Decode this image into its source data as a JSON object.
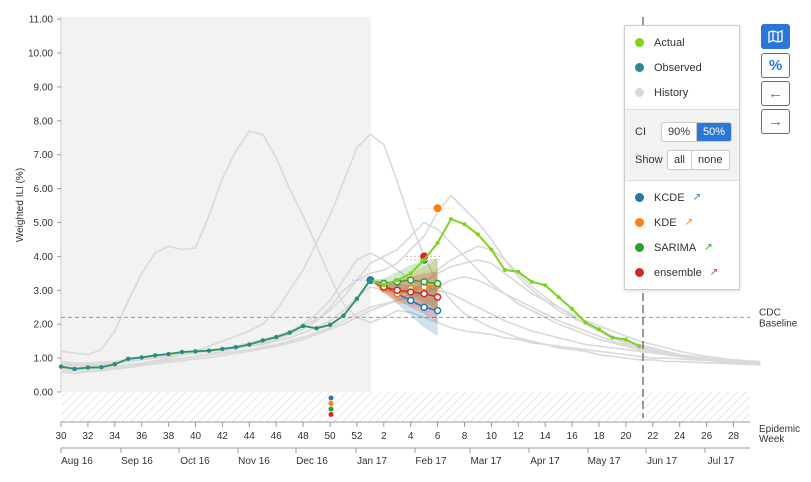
{
  "chart_data": {
    "type": "line",
    "ylabel": "Weighted ILI (%)",
    "xlabel": "Epidemic Week",
    "ylim": [
      0,
      11
    ],
    "yticks": [
      "0.00",
      "1.00",
      "2.00",
      "3.00",
      "4.00",
      "5.00",
      "6.00",
      "7.00",
      "8.00",
      "9.00",
      "10.00",
      "11.00"
    ],
    "week_ticks": [
      "30",
      "32",
      "34",
      "36",
      "38",
      "40",
      "42",
      "44",
      "46",
      "48",
      "50",
      "52",
      "2",
      "4",
      "6",
      "8",
      "10",
      "12",
      "14",
      "16",
      "18",
      "20",
      "22",
      "24",
      "26",
      "28"
    ],
    "month_ticks": [
      "Aug 16",
      "Sep 16",
      "Oct 16",
      "Nov 16",
      "Dec 16",
      "Jan 17",
      "Feb 17",
      "Mar 17",
      "Apr 17",
      "May 17",
      "Jun 17",
      "Jul 17"
    ],
    "baseline": {
      "value": 2.2,
      "label_line1": "CDC",
      "label_line2": "Baseline"
    },
    "observed": {
      "name": "Observed",
      "color": "#2a8a8a",
      "values": [
        0.75,
        0.68,
        0.72,
        0.73,
        0.82,
        0.98,
        1.02,
        1.08,
        1.12,
        1.18,
        1.2,
        1.22,
        1.27,
        1.32,
        1.4,
        1.52,
        1.62,
        1.75,
        1.95,
        1.88,
        1.98,
        2.25,
        2.75,
        3.3
      ]
    },
    "actual": {
      "name": "Actual",
      "color": "#7ed321",
      "values": [
        0.75,
        0.68,
        0.72,
        0.73,
        0.82,
        0.98,
        1.02,
        1.08,
        1.12,
        1.18,
        1.2,
        1.22,
        1.27,
        1.32,
        1.4,
        1.52,
        1.62,
        1.75,
        1.95,
        1.88,
        1.98,
        2.25,
        2.75,
        3.3,
        3.15,
        3.3,
        3.5,
        3.9,
        4.4,
        5.1,
        4.95,
        4.65,
        4.2,
        3.6,
        3.55,
        3.25,
        3.15,
        2.8,
        2.45,
        2.05,
        1.85,
        1.6,
        1.55,
        1.35
      ]
    },
    "history_color": "#d9d9d9",
    "history": [
      [
        1.2,
        1.15,
        1.1,
        1.25,
        1.8,
        2.7,
        3.5,
        4.1,
        4.3,
        4.2,
        4.25,
        5.2,
        6.3,
        7.1,
        7.7,
        7.6,
        6.9,
        6.0,
        5.2,
        4.3,
        3.4,
        2.6,
        2.2,
        2.05,
        2.2,
        2.4,
        2.35,
        2.2,
        2.05,
        1.9,
        1.8,
        1.75,
        1.7,
        1.6,
        1.55,
        1.45,
        1.4,
        1.35,
        1.3,
        1.25,
        1.2,
        1.15,
        1.1,
        1.05,
        1.0,
        1.0,
        0.98,
        0.95,
        0.93,
        0.9,
        0.88,
        0.87,
        0.85
      ],
      [
        0.6,
        0.55,
        0.6,
        0.62,
        0.7,
        0.8,
        0.85,
        0.92,
        1.0,
        1.1,
        1.2,
        1.35,
        1.5,
        1.65,
        1.8,
        2.0,
        2.4,
        3.0,
        3.6,
        4.4,
        5.2,
        6.2,
        7.2,
        7.6,
        7.3,
        6.2,
        5.0,
        4.0,
        3.2,
        2.7,
        2.3,
        2.1,
        1.9,
        1.75,
        1.6,
        1.5,
        1.4,
        1.3,
        1.25,
        1.2,
        1.1,
        1.05,
        1.0,
        0.95,
        0.95,
        0.9,
        0.9,
        0.88,
        0.86,
        0.85,
        0.83,
        0.82,
        0.8
      ],
      [
        0.8,
        0.78,
        0.77,
        0.78,
        0.82,
        0.9,
        0.95,
        1.0,
        1.05,
        1.1,
        1.15,
        1.2,
        1.25,
        1.3,
        1.4,
        1.5,
        1.6,
        1.8,
        2.0,
        2.3,
        2.7,
        3.3,
        3.9,
        4.1,
        3.9,
        3.6,
        3.3,
        3.1,
        3.0,
        2.9,
        2.7,
        2.5,
        2.3,
        2.1,
        1.95,
        1.8,
        1.7,
        1.6,
        1.5,
        1.4,
        1.35,
        1.3,
        1.25,
        1.2,
        1.15,
        1.1,
        1.05,
        1.0,
        0.98,
        0.95,
        0.92,
        0.9,
        0.88
      ],
      [
        0.7,
        0.68,
        0.68,
        0.7,
        0.72,
        0.78,
        0.82,
        0.88,
        0.92,
        0.98,
        1.05,
        1.12,
        1.2,
        1.28,
        1.35,
        1.45,
        1.55,
        1.7,
        1.85,
        2.1,
        2.5,
        3.0,
        3.3,
        3.5,
        3.6,
        3.8,
        4.2,
        4.6,
        5.3,
        5.8,
        5.4,
        5.0,
        4.5,
        3.9,
        3.4,
        3.0,
        2.7,
        2.4,
        2.2,
        2.0,
        1.8,
        1.65,
        1.5,
        1.4,
        1.3,
        1.2,
        1.1,
        1.05,
        1.0,
        0.95,
        0.92,
        0.9,
        0.88
      ],
      [
        0.9,
        0.85,
        0.85,
        0.88,
        0.9,
        0.95,
        1.0,
        1.05,
        1.1,
        1.12,
        1.15,
        1.2,
        1.25,
        1.3,
        1.35,
        1.4,
        1.5,
        1.6,
        1.75,
        1.9,
        2.1,
        2.4,
        2.8,
        3.1,
        3.0,
        2.9,
        3.0,
        3.2,
        3.5,
        3.7,
        3.8,
        3.9,
        3.8,
        3.5,
        3.2,
        2.9,
        2.7,
        2.5,
        2.3,
        2.1,
        1.95,
        1.8,
        1.65,
        1.5,
        1.4,
        1.3,
        1.2,
        1.12,
        1.05,
        1.0,
        0.95,
        0.92,
        0.9
      ],
      [
        0.75,
        0.72,
        0.7,
        0.72,
        0.75,
        0.8,
        0.85,
        0.9,
        0.95,
        1.0,
        1.05,
        1.1,
        1.15,
        1.2,
        1.25,
        1.32,
        1.4,
        1.5,
        1.62,
        1.75,
        1.9,
        2.1,
        2.3,
        2.5,
        2.6,
        2.7,
        2.8,
        2.9,
        3.1,
        3.3,
        3.4,
        3.3,
        3.1,
        2.9,
        2.7,
        2.5,
        2.3,
        2.1,
        1.95,
        1.8,
        1.65,
        1.5,
        1.4,
        1.3,
        1.2,
        1.12,
        1.05,
        1.0,
        0.95,
        0.9,
        0.88,
        0.85,
        0.82
      ],
      [
        0.85,
        0.8,
        0.8,
        0.82,
        0.85,
        0.9,
        0.95,
        1.0,
        1.05,
        1.1,
        1.15,
        1.2,
        1.28,
        1.35,
        1.45,
        1.55,
        1.65,
        1.8,
        1.95,
        2.15,
        2.4,
        2.8,
        3.3,
        3.8,
        4.0,
        4.2,
        4.6,
        5.0,
        4.8,
        4.4,
        4.0,
        3.6,
        3.2,
        2.9,
        2.6,
        2.4,
        2.2,
        2.0,
        1.85,
        1.7,
        1.55,
        1.45,
        1.35,
        1.25,
        1.18,
        1.1,
        1.05,
        1.0,
        0.95,
        0.92,
        0.9,
        0.87,
        0.85
      ],
      [
        0.65,
        0.62,
        0.62,
        0.64,
        0.68,
        0.72,
        0.78,
        0.82,
        0.88,
        0.92,
        0.98,
        1.02,
        1.08,
        1.15,
        1.2,
        1.28,
        1.35,
        1.45,
        1.55,
        1.7,
        1.85,
        2.0,
        2.2,
        2.4,
        2.55,
        2.7,
        2.9,
        3.2,
        3.6,
        3.9,
        4.1,
        4.3,
        4.2,
        3.9,
        3.5,
        3.1,
        2.8,
        2.5,
        2.25,
        2.0,
        1.8,
        1.6,
        1.45,
        1.35,
        1.25,
        1.15,
        1.08,
        1.0,
        0.95,
        0.9,
        0.85,
        0.82,
        0.8
      ]
    ],
    "forecasts": [
      {
        "name": "KCDE",
        "color": "#1f77b4",
        "values": [
          3.3,
          3.1,
          2.9,
          2.7,
          2.5,
          2.4
        ]
      },
      {
        "name": "KDE",
        "color": "#ff7f0e",
        "values": [
          3.3,
          3.05,
          2.9,
          3.05,
          3.1,
          3.15
        ]
      },
      {
        "name": "SARIMA",
        "color": "#2ca02c",
        "values": [
          3.3,
          3.2,
          3.25,
          3.3,
          3.25,
          3.2
        ]
      },
      {
        "name": "ensemble",
        "color": "#d62728",
        "values": [
          3.3,
          3.1,
          3.0,
          2.95,
          2.9,
          2.8
        ]
      }
    ],
    "peak_points": [
      {
        "name": "KCDE",
        "color": "#1f77b4",
        "week_index": 23,
        "value": 3.3
      },
      {
        "name": "KDE",
        "color": "#ff7f0e",
        "week_index": 28,
        "value": 5.42
      },
      {
        "name": "SARIMA",
        "color": "#2ca02c",
        "week_index": 27,
        "value": 3.9
      },
      {
        "name": "ensemble",
        "color": "#d62728",
        "week_index": 27,
        "value": 4.0
      }
    ]
  },
  "legend": {
    "actual": "Actual",
    "observed": "Observed",
    "history": "History",
    "ci_label": "CI",
    "ci_90": "90%",
    "ci_50": "50%",
    "show_label": "Show",
    "show_all": "all",
    "show_none": "none",
    "models": [
      {
        "name": "KCDE",
        "color": "#1f77b4"
      },
      {
        "name": "KDE",
        "color": "#ff7f0e"
      },
      {
        "name": "SARIMA",
        "color": "#2ca02c"
      },
      {
        "name": "ensemble",
        "color": "#d62728"
      }
    ]
  },
  "colors": {
    "accent": "#2b76d6",
    "actual": "#7ed321",
    "observed": "#2a8a8a",
    "history": "#d9d9d9"
  },
  "side_icons": [
    "map-icon",
    "percent-icon",
    "arrow-left-icon",
    "arrow-right-icon"
  ]
}
